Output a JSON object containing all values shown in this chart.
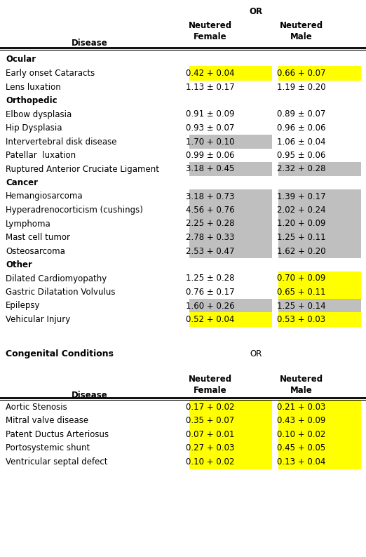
{
  "yellow": "#FFFF00",
  "gray": "#BFBFBF",
  "section1_rows": [
    {
      "type": "section",
      "label": "Ocular",
      "female": "",
      "male": "",
      "female_bg": "none",
      "male_bg": "none"
    },
    {
      "type": "data",
      "disease": "Early onset Cataracts",
      "female": "0.42 + 0.04",
      "male": "0.66 + 0.07",
      "female_bg": "yellow",
      "male_bg": "yellow"
    },
    {
      "type": "data",
      "disease": "Lens luxation",
      "female": "1.13 ± 0.17",
      "male": "1.19 ± 0.20",
      "female_bg": "none",
      "male_bg": "none"
    },
    {
      "type": "section",
      "label": "Orthopedic",
      "female": "",
      "male": "",
      "female_bg": "none",
      "male_bg": "none"
    },
    {
      "type": "data",
      "disease": "Elbow dysplasia",
      "female": "0.91 ± 0.09",
      "male": "0.89 ± 0.07",
      "female_bg": "none",
      "male_bg": "none"
    },
    {
      "type": "data",
      "disease": "Hip Dysplasia",
      "female": "0.93 ± 0.07",
      "male": "0.96 ± 0.06",
      "female_bg": "none",
      "male_bg": "none"
    },
    {
      "type": "data",
      "disease": "Intervertebral disk disease",
      "female": "1.70 + 0.10",
      "male": "1.06 ± 0.04",
      "female_bg": "gray",
      "male_bg": "none"
    },
    {
      "type": "data",
      "disease": "Patellar  luxation",
      "female": "0.99 ± 0.06",
      "male": "0.95 ± 0.06",
      "female_bg": "none",
      "male_bg": "none"
    },
    {
      "type": "data",
      "disease": "Ruptured Anterior Cruciate Ligament",
      "female": "3.18 + 0.45",
      "male": "2.32 + 0.28",
      "female_bg": "gray",
      "male_bg": "gray"
    },
    {
      "type": "section",
      "label": "Cancer",
      "female": "",
      "male": "",
      "female_bg": "none",
      "male_bg": "none"
    },
    {
      "type": "data",
      "disease": "Hemangiosarcoma",
      "female": "3.18 + 0.73",
      "male": "1.39 + 0.17",
      "female_bg": "gray",
      "male_bg": "gray"
    },
    {
      "type": "data",
      "disease": "Hyperadrenocorticism (cushings)",
      "female": "4.56 + 0.76",
      "male": "2.02 + 0.24",
      "female_bg": "gray",
      "male_bg": "gray"
    },
    {
      "type": "data",
      "disease": "Lymphoma",
      "female": "2.25 + 0.28",
      "male": "1.20 + 0.09",
      "female_bg": "gray",
      "male_bg": "gray"
    },
    {
      "type": "data",
      "disease": "Mast cell tumor",
      "female": "2.78 + 0.33",
      "male": "1.25 + 0.11",
      "female_bg": "gray",
      "male_bg": "gray"
    },
    {
      "type": "data",
      "disease": "Osteosarcoma",
      "female": "2.53 + 0.47",
      "male": "1.62 + 0.20",
      "female_bg": "gray",
      "male_bg": "gray"
    },
    {
      "type": "section",
      "label": "Other",
      "female": "",
      "male": "",
      "female_bg": "none",
      "male_bg": "none"
    },
    {
      "type": "data",
      "disease": "Dilated Cardiomyopathy",
      "female": "1.25 ± 0.28",
      "male": "0.70 + 0.09",
      "female_bg": "none",
      "male_bg": "yellow"
    },
    {
      "type": "data",
      "disease": "Gastric Dilatation Volvulus",
      "female": "0.76 ± 0.17",
      "male": "0.65 + 0.11",
      "female_bg": "none",
      "male_bg": "yellow"
    },
    {
      "type": "data",
      "disease": "Epilepsy",
      "female": "1.60 + 0.26",
      "male": "1.25 + 0.14",
      "female_bg": "gray",
      "male_bg": "gray"
    },
    {
      "type": "data",
      "disease": "Vehicular Injury",
      "female": "0.52 + 0.04",
      "male": "0.53 + 0.03",
      "female_bg": "yellow",
      "male_bg": "yellow"
    }
  ],
  "section2_rows": [
    {
      "type": "data",
      "disease": "Aortic Stenosis",
      "female": "0.17 + 0.02",
      "male": "0.21 + 0.03",
      "female_bg": "yellow",
      "male_bg": "yellow"
    },
    {
      "type": "data",
      "disease": "Mitral valve disease",
      "female": "0.35 + 0.07",
      "male": "0.43 + 0.09",
      "female_bg": "yellow",
      "male_bg": "yellow"
    },
    {
      "type": "data",
      "disease": "Patent Ductus Arteriosus",
      "female": "0.07 + 0.01",
      "male": "0.10 + 0.02",
      "female_bg": "yellow",
      "male_bg": "yellow"
    },
    {
      "type": "data",
      "disease": "Portosystemic shunt",
      "female": "0.27 + 0.03",
      "male": "0.45 + 0.05",
      "female_bg": "yellow",
      "male_bg": "yellow"
    },
    {
      "type": "data",
      "disease": "Ventricular septal defect",
      "female": "0.10 + 0.02",
      "male": "0.13 + 0.04",
      "female_bg": "yellow",
      "male_bg": "yellow"
    }
  ]
}
